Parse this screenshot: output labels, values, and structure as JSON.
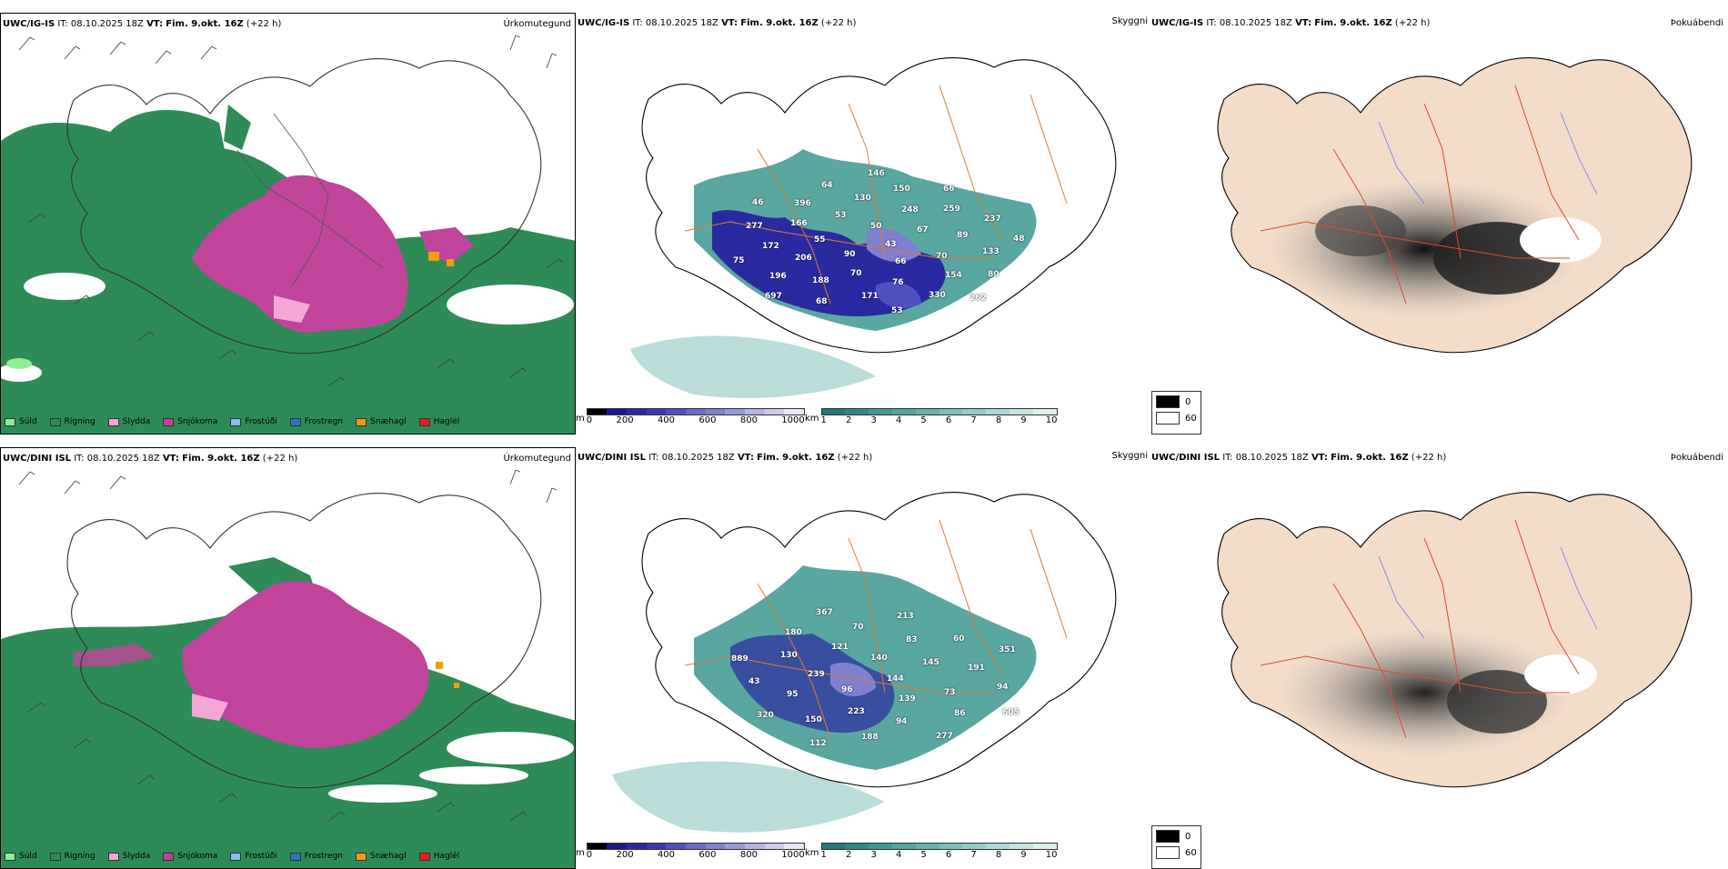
{
  "rows": [
    {
      "model": "UWC/IG-IS",
      "it_label": "IT:",
      "it_value": "08.10.2025 18Z",
      "vt_label": "VT:",
      "vt_value": "Fim. 9.okt. 16Z",
      "lead": "(+22 h)",
      "precip_title": "Úrkomutegund",
      "vis_title": "Skyggni",
      "fog_title": "Þokuábendi",
      "ceiling_numbers": [
        "43",
        "90",
        "50",
        "66",
        "55",
        "67",
        "70",
        "53",
        "70",
        "206",
        "248",
        "76",
        "166",
        "89",
        "188",
        "130",
        "154",
        "172",
        "259",
        "171",
        "396",
        "133",
        "196",
        "150",
        "330",
        "277",
        "237",
        "68",
        "64",
        "80",
        "75",
        "66",
        "53",
        "46",
        "48",
        "697",
        "146",
        "262"
      ]
    },
    {
      "model": "UWC/DINI ISL",
      "it_label": "IT:",
      "it_value": "08.10.2025 18Z",
      "vt_label": "VT:",
      "vt_value": "Fim. 9.okt. 16Z",
      "lead": "(+22 h)",
      "precip_title": "Úrkomutegund",
      "vis_title": "Skyggni",
      "fog_title": "Þokuábendi",
      "ceiling_numbers": [
        "144",
        "96",
        "140",
        "139",
        "239",
        "145",
        "223",
        "121",
        "73",
        "95",
        "83",
        "94",
        "130",
        "191",
        "150",
        "70",
        "86",
        "43",
        "60",
        "188",
        "180",
        "94",
        "320",
        "213",
        "277",
        "889",
        "351",
        "112",
        "367",
        "605"
      ]
    }
  ],
  "precip_legend": [
    {
      "label": "Súld",
      "color": "#90ee90"
    },
    {
      "label": "Rigning",
      "color": "#2e8b57"
    },
    {
      "label": "Slydda",
      "color": "#f4a6d7"
    },
    {
      "label": "Snjókoma",
      "color": "#c0449a"
    },
    {
      "label": "Frostúði",
      "color": "#87bde8"
    },
    {
      "label": "Frostregn",
      "color": "#2f74c0"
    },
    {
      "label": "Snæhagl",
      "color": "#f39c12"
    },
    {
      "label": "Haglél",
      "color": "#e11d1d"
    }
  ],
  "ceiling_scale": {
    "unit": "m",
    "ticks": [
      "0",
      "200",
      "400",
      "600",
      "800",
      "1000"
    ],
    "colors": [
      "#000000",
      "#1a1a8c",
      "#2a2aa0",
      "#3a3ab0",
      "#5050c0",
      "#6a6ac8",
      "#8080d0",
      "#9a9ad8",
      "#b4b4e0",
      "#ccccea",
      "#e6e6f4"
    ]
  },
  "visibility_scale": {
    "unit": "km",
    "ticks": [
      "1",
      "2",
      "3",
      "4",
      "5",
      "6",
      "7",
      "8",
      "9",
      "10"
    ],
    "colors": [
      "#1f7a78",
      "#2e8985",
      "#3f9893",
      "#52a6a0",
      "#67b3ad",
      "#7dc0ba",
      "#94ccc7",
      "#abd8d4",
      "#c4e4e1",
      "#ddefee"
    ]
  },
  "fog_legend": [
    {
      "label": "0",
      "color": "#000000"
    },
    {
      "label": "60",
      "color": "#ffffff"
    }
  ],
  "colors": {
    "rain": "#2e8b57",
    "snow": "#c0449a",
    "sleet": "#f4a6d7",
    "drizzle": "#90ee90",
    "ice_pellets": "#f39c12",
    "vis_teal": "#5aa7a1",
    "ceiling_blue": "#2a2aa0",
    "land_tan": "#f3dcc8",
    "roads": "#e07a2f"
  }
}
